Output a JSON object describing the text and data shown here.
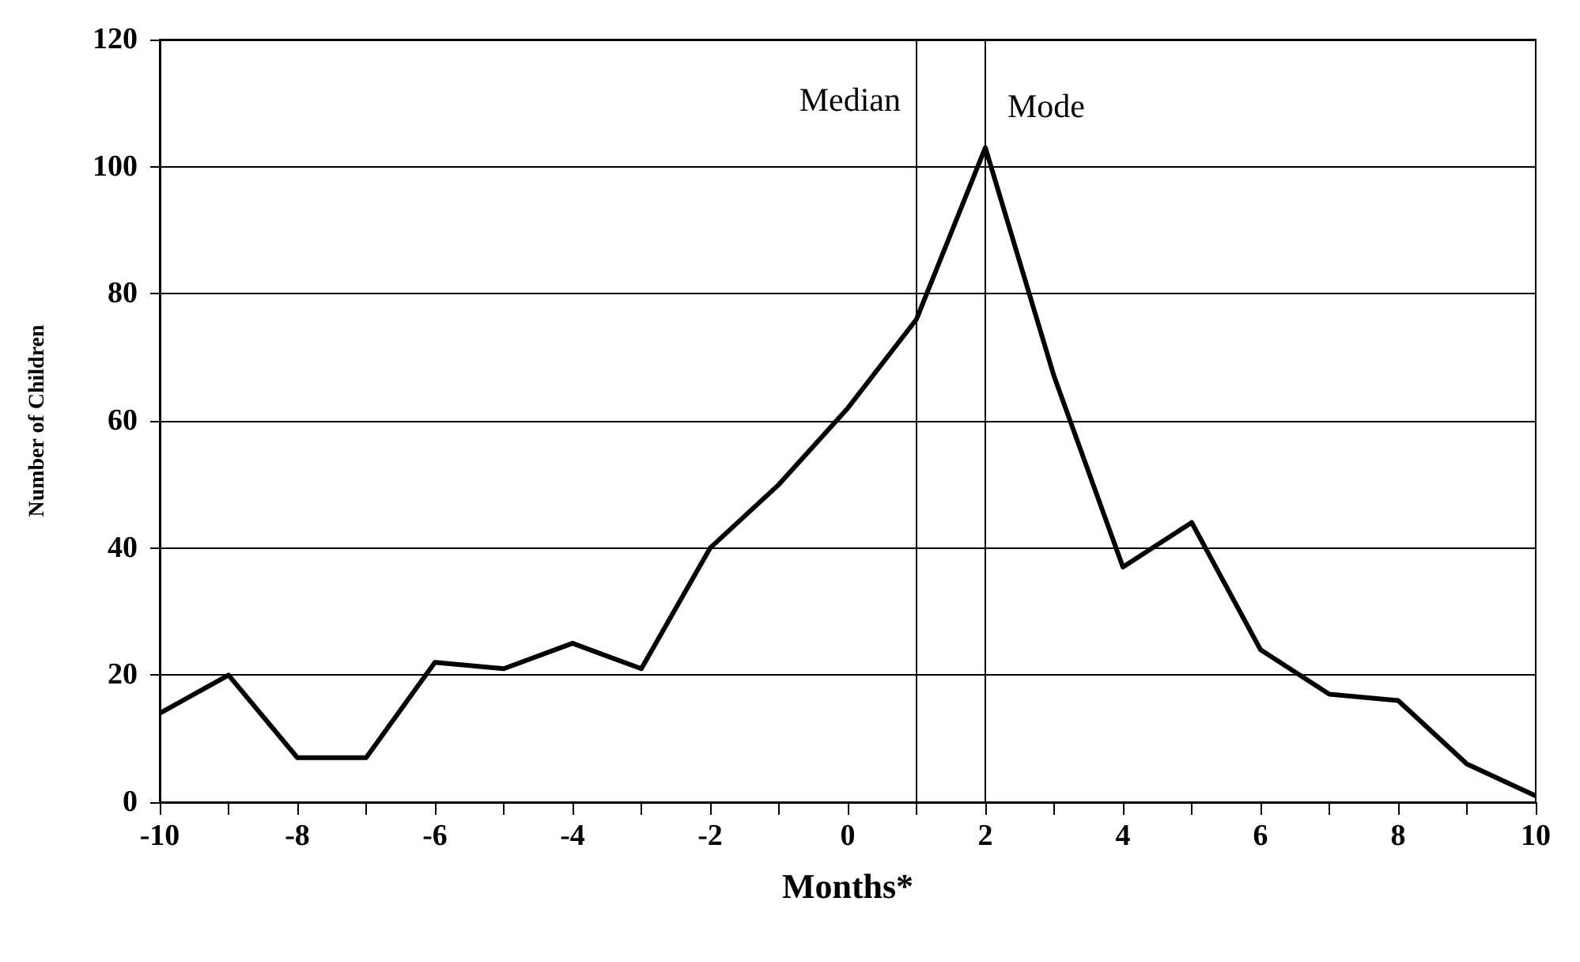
{
  "chart_data": {
    "type": "line",
    "xlabel": "Months*",
    "ylabel": "Number of Children",
    "x": [
      -10,
      -9,
      -8,
      -7,
      -6,
      -5,
      -4,
      -3,
      -2,
      -1,
      0,
      1,
      2,
      3,
      4,
      5,
      6,
      7,
      8,
      9,
      10
    ],
    "series": [
      {
        "color": "#000000",
        "values": [
          14,
          20,
          7,
          7,
          22,
          21,
          25,
          21,
          40,
          50,
          62,
          76,
          103,
          67,
          37,
          44,
          24,
          17,
          16,
          6,
          1
        ]
      }
    ],
    "xlim": [
      -10,
      10
    ],
    "xticks": [
      -10,
      {
        "value": -9,
        "label": null
      },
      -8,
      {
        "value": -7,
        "label": null
      },
      -6,
      {
        "value": -5,
        "label": null
      },
      -4,
      {
        "value": -3,
        "label": null
      },
      -2,
      {
        "value": -1,
        "label": null
      },
      0,
      {
        "value": 1,
        "label": null
      },
      2,
      {
        "value": 3,
        "label": null
      },
      4,
      {
        "value": 5,
        "label": null
      },
      6,
      {
        "value": 7,
        "label": null
      },
      8,
      {
        "value": 9,
        "label": null
      },
      10
    ],
    "ylim": [
      0,
      120
    ],
    "yticks": [
      0,
      20,
      40,
      60,
      80,
      100,
      120
    ],
    "ref_lines": [
      {
        "axis": "x",
        "value": 1,
        "label": "Median",
        "color": "#000000"
      },
      {
        "axis": "x",
        "value": 2,
        "label": "Mode",
        "color": "#000000"
      }
    ],
    "grid": "y",
    "marker": "none",
    "line_style": "solid"
  }
}
